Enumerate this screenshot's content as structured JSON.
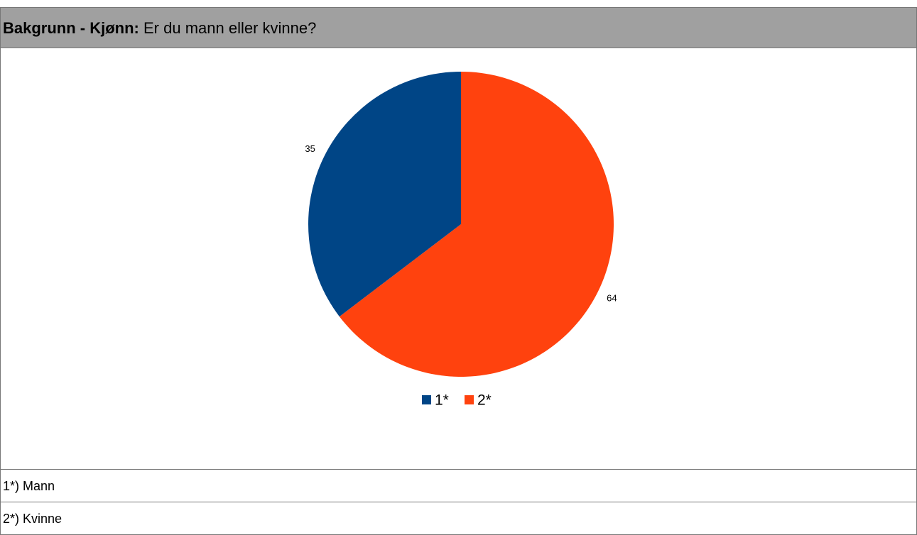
{
  "header": {
    "label": "Bakgrunn - Kjønn:",
    "question": "Er du mann eller kvinne?"
  },
  "chart_data": {
    "type": "pie",
    "categories": [
      "1*",
      "2*"
    ],
    "values": [
      35,
      64
    ],
    "colors": [
      "#004586",
      "#ff420e"
    ]
  },
  "footnotes": [
    "1*) Mann",
    "2*) Kvinne"
  ]
}
